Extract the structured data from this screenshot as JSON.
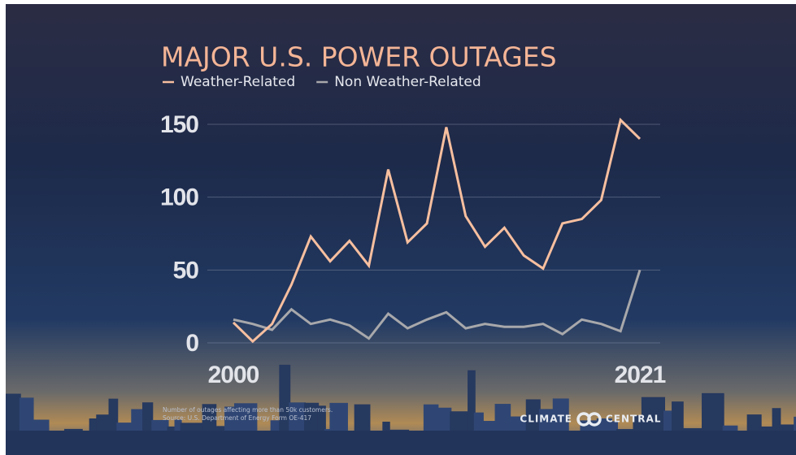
{
  "chart_data": {
    "type": "line",
    "title": "MAJOR U.S. POWER OUTAGES",
    "x": [
      2000,
      2001,
      2002,
      2003,
      2004,
      2005,
      2006,
      2007,
      2008,
      2009,
      2010,
      2011,
      2012,
      2013,
      2014,
      2015,
      2016,
      2017,
      2018,
      2019,
      2020,
      2021
    ],
    "series": [
      {
        "name": "Weather-Related",
        "color": "#f7bf9f",
        "values": [
          14,
          1,
          13,
          40,
          73,
          56,
          70,
          53,
          119,
          69,
          82,
          148,
          87,
          66,
          79,
          60,
          51,
          82,
          85,
          98,
          153,
          140
        ]
      },
      {
        "name": "Non Weather-Related",
        "color": "#a8a8ab",
        "values": [
          16,
          13,
          9,
          23,
          13,
          16,
          12,
          3,
          20,
          10,
          16,
          21,
          10,
          13,
          11,
          11,
          13,
          6,
          16,
          13,
          8,
          50
        ]
      }
    ],
    "xlim": [
      2000,
      2021
    ],
    "xticks": [
      2000,
      2021
    ],
    "ylim": [
      0,
      150
    ],
    "yticks": [
      0,
      50,
      100,
      150
    ],
    "grid": true,
    "notes": [
      "Number of outages affecting more than 50k customers.",
      "Source: U.S. Department of Energy Form OE-417"
    ],
    "brand": [
      "CLIMATE",
      "CENTRAL"
    ]
  }
}
